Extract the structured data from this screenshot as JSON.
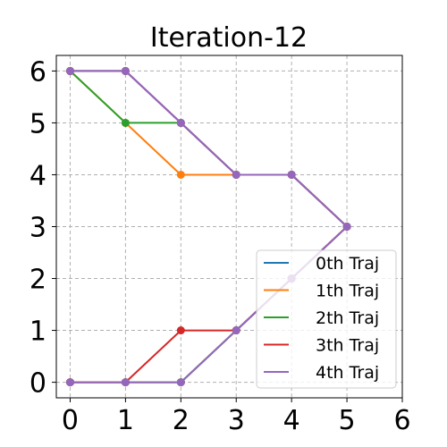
{
  "chart_data": {
    "type": "line",
    "title": "Iteration-12",
    "xlabel": "",
    "ylabel": "",
    "xlim": [
      -0.25,
      6
    ],
    "ylim": [
      -0.3,
      6.3
    ],
    "xticks": [
      "0",
      "1",
      "2",
      "3",
      "4",
      "5",
      "6"
    ],
    "yticks": [
      "0",
      "1",
      "2",
      "3",
      "4",
      "5",
      "6"
    ],
    "grid": true,
    "legend_position": "lower-right",
    "series": [
      {
        "name": "0th Traj",
        "color": "#1f77b4",
        "points": [
          [
            0,
            6
          ],
          [
            1,
            6
          ],
          [
            2,
            5
          ],
          [
            3,
            4
          ],
          [
            4,
            4
          ],
          [
            5,
            3
          ],
          [
            4,
            2
          ],
          [
            3,
            1
          ],
          [
            2,
            0
          ],
          [
            1,
            0
          ],
          [
            0,
            0
          ]
        ]
      },
      {
        "name": "1th Traj",
        "color": "#ff7f0e",
        "points": [
          [
            0,
            6
          ],
          [
            1,
            5
          ],
          [
            2,
            4
          ],
          [
            3,
            4
          ],
          [
            4,
            4
          ],
          [
            5,
            3
          ],
          [
            4,
            2
          ],
          [
            3,
            1
          ],
          [
            2,
            0
          ],
          [
            1,
            0
          ],
          [
            0,
            0
          ]
        ]
      },
      {
        "name": "2th Traj",
        "color": "#2ca02c",
        "points": [
          [
            0,
            6
          ],
          [
            1,
            5
          ],
          [
            2,
            5
          ],
          [
            3,
            4
          ],
          [
            4,
            4
          ],
          [
            5,
            3
          ],
          [
            4,
            2
          ],
          [
            3,
            1
          ],
          [
            2,
            0
          ],
          [
            1,
            0
          ],
          [
            0,
            0
          ]
        ]
      },
      {
        "name": "3th Traj",
        "color": "#d62728",
        "points": [
          [
            0,
            6
          ],
          [
            1,
            6
          ],
          [
            2,
            5
          ],
          [
            3,
            4
          ],
          [
            4,
            4
          ],
          [
            5,
            3
          ],
          [
            4,
            2
          ],
          [
            3,
            1
          ],
          [
            2,
            1
          ],
          [
            1,
            0
          ],
          [
            0,
            0
          ]
        ]
      },
      {
        "name": "4th Traj",
        "color": "#9467bd",
        "points": [
          [
            0,
            6
          ],
          [
            1,
            6
          ],
          [
            2,
            5
          ],
          [
            3,
            4
          ],
          [
            4,
            4
          ],
          [
            5,
            3
          ],
          [
            4,
            2
          ],
          [
            3,
            1
          ],
          [
            2,
            0
          ],
          [
            1,
            0
          ],
          [
            0,
            0
          ]
        ]
      }
    ]
  }
}
